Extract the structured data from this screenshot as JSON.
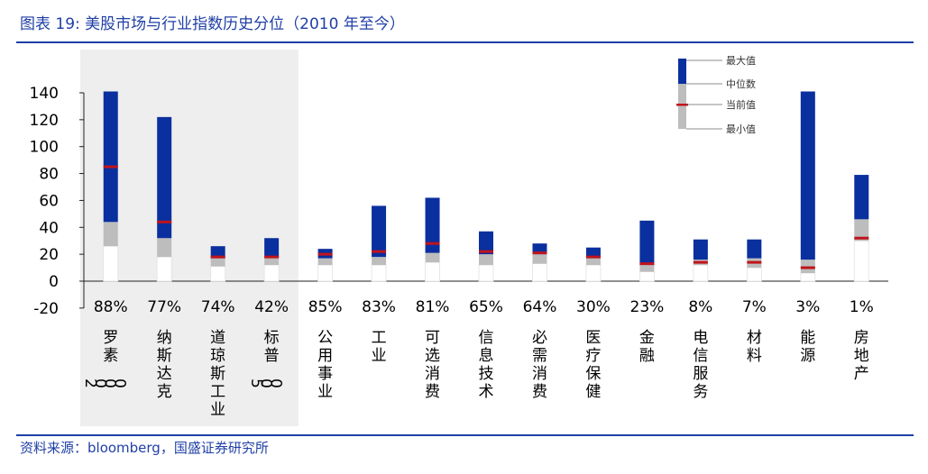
{
  "title": "图表 19:  美股市场与行业指数历史分位（2010 年至今）",
  "source": "资料来源：bloomberg，国盛证券研究所",
  "colors": {
    "title": "#1f3fa6",
    "max_segment": "#0a2f9e",
    "median_segment": "#bdbdbd",
    "current_marker": "#c0141c",
    "highlight_bg": "#eeeeee",
    "axis": "#222222"
  },
  "legend": {
    "max": "最大值",
    "median": "中位数",
    "current": "当前值",
    "min": "最小值"
  },
  "chart_data": {
    "type": "floating-bar",
    "title": "美股市场与行业指数历史分位（2010 年至今）",
    "ylim": [
      -20,
      140
    ],
    "yticks": [
      -20,
      0,
      20,
      40,
      60,
      80,
      100,
      120,
      140
    ],
    "highlighted_categories": [
      "罗素2000",
      "纳斯达克",
      "道琼斯工业",
      "标普500"
    ],
    "categories": [
      "罗素2000",
      "纳斯达克",
      "道琼斯工业",
      "标普500",
      "公用事业",
      "工业",
      "可选消费",
      "信息技术",
      "必需消费",
      "医疗保健",
      "金融",
      "电信服务",
      "材料",
      "能源",
      "房地产"
    ],
    "percentiles": [
      "88%",
      "77%",
      "74%",
      "42%",
      "85%",
      "83%",
      "81%",
      "65%",
      "64%",
      "30%",
      "23%",
      "8%",
      "7%",
      "3%",
      "1%"
    ],
    "min": [
      0,
      0,
      0,
      0,
      0,
      0,
      0,
      0,
      0,
      0,
      0,
      0,
      0,
      0,
      0
    ],
    "min_band_low": [
      26,
      18,
      11,
      12,
      12,
      12,
      14,
      12,
      13,
      12,
      7,
      12,
      10,
      6,
      30
    ],
    "median": [
      44,
      32,
      17,
      18,
      17,
      18,
      21,
      20,
      20,
      17,
      12,
      16,
      17,
      16,
      46
    ],
    "max": [
      141,
      122,
      26,
      32,
      24,
      56,
      62,
      37,
      28,
      25,
      45,
      31,
      31,
      141,
      79
    ],
    "current": [
      85,
      44,
      18,
      18,
      20,
      22,
      28,
      22,
      21,
      18,
      13,
      14,
      14,
      10,
      32
    ]
  }
}
